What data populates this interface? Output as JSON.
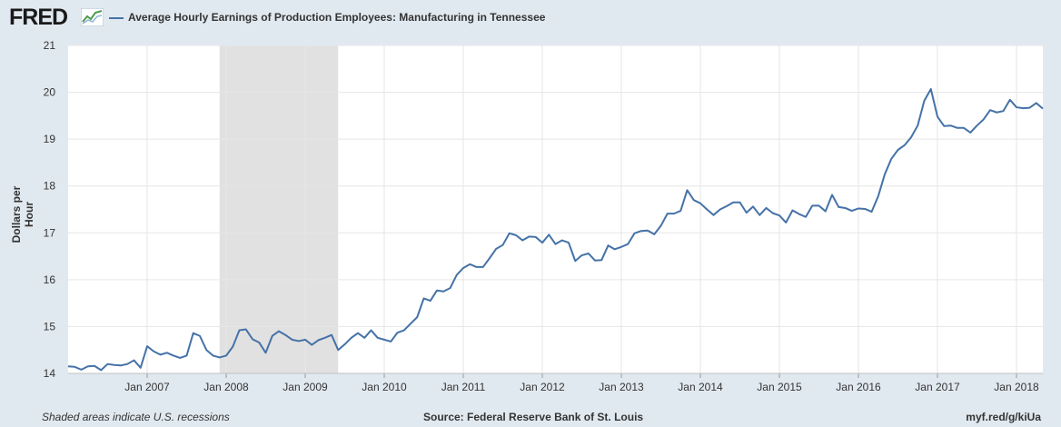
{
  "header": {
    "logo_text": "FRED",
    "logo_mark": "chart-trend-icon",
    "series_title": "Average Hourly Earnings of Production Employees: Manufacturing in Tennessee"
  },
  "footer": {
    "note": "Shaded areas indicate U.S. recessions",
    "source": "Source: Federal Reserve Bank of St. Louis",
    "link": "myf.red/g/kiUa"
  },
  "colors": {
    "line": "#4572a7",
    "recession": "#e1e1e1",
    "plot_bg": "#ffffff",
    "grid": "#e6e6e6",
    "page_bg": "#e1e9f0"
  },
  "chart_data": {
    "type": "line",
    "title": "Average Hourly Earnings of Production Employees: Manufacturing in Tennessee",
    "xlabel": "",
    "ylabel": "Dollars per Hour",
    "ylim": [
      14,
      21
    ],
    "yticks": [
      14,
      15,
      16,
      17,
      18,
      19,
      20,
      21
    ],
    "xlim": [
      "2006-01",
      "2018-05"
    ],
    "xticks": [
      {
        "date": "2007-01",
        "label": "Jan 2007"
      },
      {
        "date": "2008-01",
        "label": "Jan 2008"
      },
      {
        "date": "2009-01",
        "label": "Jan 2009"
      },
      {
        "date": "2010-01",
        "label": "Jan 2010"
      },
      {
        "date": "2011-01",
        "label": "Jan 2011"
      },
      {
        "date": "2012-01",
        "label": "Jan 2012"
      },
      {
        "date": "2013-01",
        "label": "Jan 2013"
      },
      {
        "date": "2014-01",
        "label": "Jan 2014"
      },
      {
        "date": "2015-01",
        "label": "Jan 2015"
      },
      {
        "date": "2016-01",
        "label": "Jan 2016"
      },
      {
        "date": "2017-01",
        "label": "Jan 2017"
      },
      {
        "date": "2018-01",
        "label": "Jan 2018"
      }
    ],
    "grid": true,
    "recessions": [
      {
        "start": "2007-12",
        "end": "2009-06"
      }
    ],
    "start": "2006-01",
    "frequency": "monthly",
    "values": [
      14.15,
      14.14,
      14.08,
      14.15,
      14.16,
      14.07,
      14.2,
      14.18,
      14.17,
      14.2,
      14.28,
      14.12,
      14.58,
      14.47,
      14.4,
      14.44,
      14.38,
      14.33,
      14.38,
      14.86,
      14.8,
      14.5,
      14.38,
      14.34,
      14.38,
      14.57,
      14.92,
      14.94,
      14.73,
      14.66,
      14.44,
      14.8,
      14.9,
      14.82,
      14.72,
      14.69,
      14.72,
      14.61,
      14.71,
      14.76,
      14.82,
      14.5,
      14.62,
      14.76,
      14.86,
      14.76,
      14.92,
      14.76,
      14.72,
      14.68,
      14.87,
      14.92,
      15.06,
      15.2,
      15.6,
      15.55,
      15.77,
      15.75,
      15.82,
      16.1,
      16.25,
      16.33,
      16.27,
      16.27,
      16.46,
      16.66,
      16.74,
      16.99,
      16.95,
      16.84,
      16.92,
      16.91,
      16.79,
      16.96,
      16.76,
      16.84,
      16.79,
      16.4,
      16.52,
      16.56,
      16.41,
      16.42,
      16.73,
      16.65,
      16.7,
      16.76,
      16.99,
      17.04,
      17.05,
      16.97,
      17.15,
      17.41,
      17.41,
      17.47,
      17.91,
      17.7,
      17.63,
      17.5,
      17.38,
      17.5,
      17.57,
      17.65,
      17.65,
      17.43,
      17.56,
      17.38,
      17.53,
      17.42,
      17.37,
      17.22,
      17.48,
      17.4,
      17.34,
      17.58,
      17.58,
      17.46,
      17.81,
      17.55,
      17.53,
      17.47,
      17.52,
      17.51,
      17.45,
      17.78,
      18.25,
      18.58,
      18.77,
      18.87,
      19.04,
      19.29,
      19.82,
      20.07,
      19.48,
      19.28,
      19.29,
      19.24,
      19.24,
      19.14,
      19.29,
      19.42,
      19.62,
      19.57,
      19.6,
      19.84,
      19.68,
      19.66,
      19.67,
      19.77,
      19.65
    ]
  }
}
